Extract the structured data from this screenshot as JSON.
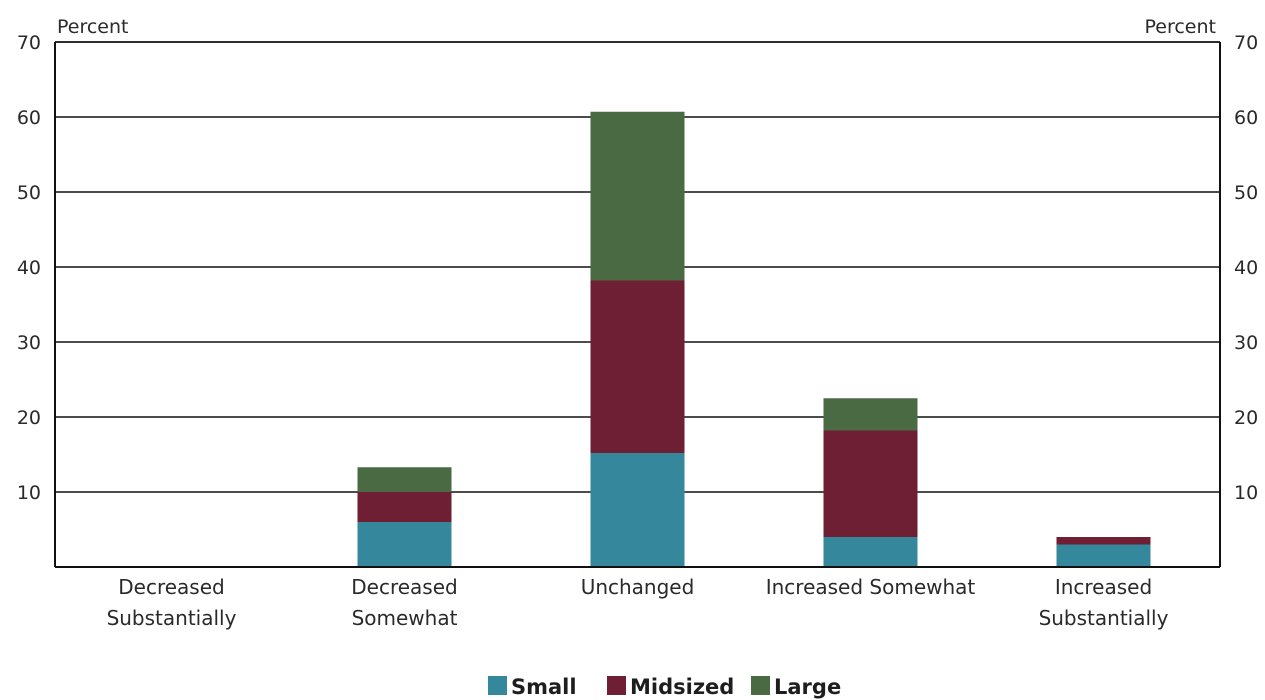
{
  "chart_data": {
    "type": "bar",
    "stacked": true,
    "title": "",
    "y_unit_left": "Percent",
    "y_unit_right": "Percent",
    "ylim": [
      0,
      70
    ],
    "yticks": [
      10,
      20,
      30,
      40,
      50,
      60,
      70
    ],
    "grid": true,
    "legend_position": "bottom",
    "categories": [
      [
        "Decreased",
        "Substantially"
      ],
      [
        "Decreased",
        "Somewhat"
      ],
      [
        "Unchanged"
      ],
      [
        "Increased Somewhat"
      ],
      [
        "Increased",
        "Substantially"
      ]
    ],
    "series": [
      {
        "name": "Small",
        "color": "#35879c",
        "values": [
          0,
          6.0,
          15.2,
          4.0,
          3.0
        ]
      },
      {
        "name": "Midsized",
        "color": "#6e1f33",
        "values": [
          0,
          4.0,
          23.0,
          14.2,
          1.0
        ]
      },
      {
        "name": "Large",
        "color": "#4a6a43",
        "values": [
          0,
          3.3,
          22.5,
          4.3,
          0
        ]
      }
    ]
  }
}
